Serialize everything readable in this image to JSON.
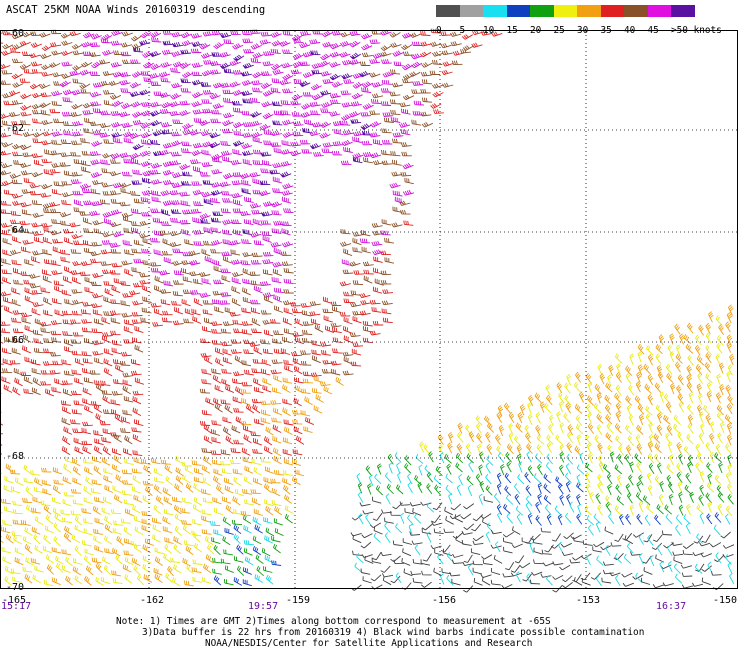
{
  "title": "ASCAT 25KM NOAA Winds 20160319 descending",
  "color_scale": {
    "bins": [
      {
        "label": "0",
        "color": "#505050"
      },
      {
        "label": "5",
        "color": "#a0a0a0"
      },
      {
        "label": "10",
        "color": "#18e0f0"
      },
      {
        "label": "15",
        "color": "#1040c0"
      },
      {
        "label": "20",
        "color": "#10a010"
      },
      {
        "label": "25",
        "color": "#f0f010"
      },
      {
        "label": "30",
        "color": "#f0a010"
      },
      {
        "label": "35",
        "color": "#e02020"
      },
      {
        "label": "40",
        "color": "#8a5028"
      },
      {
        "label": "45",
        "color": "#e010e0"
      },
      {
        "label": ">50 knots",
        "color": "#5a10a0"
      }
    ]
  },
  "map": {
    "lat_labels": [
      "-60",
      "-62",
      "-64",
      "-66",
      "-68",
      "-70"
    ],
    "lon_labels": [
      "-165",
      "-162",
      "-159",
      "-156",
      "-153",
      "-150"
    ],
    "time_labels": [
      "15:17",
      "19:57",
      "16:37"
    ]
  },
  "notes": {
    "line1": "Note: 1) Times are GMT 2)Times along bottom correspond to measurement at -65S",
    "line2": "3)Data buffer is 22 hrs from 20160319 4) Black wind barbs indicate possible contamination",
    "line3": "NOAA/NESDIS/Center for Satellite Applications and Research"
  }
}
